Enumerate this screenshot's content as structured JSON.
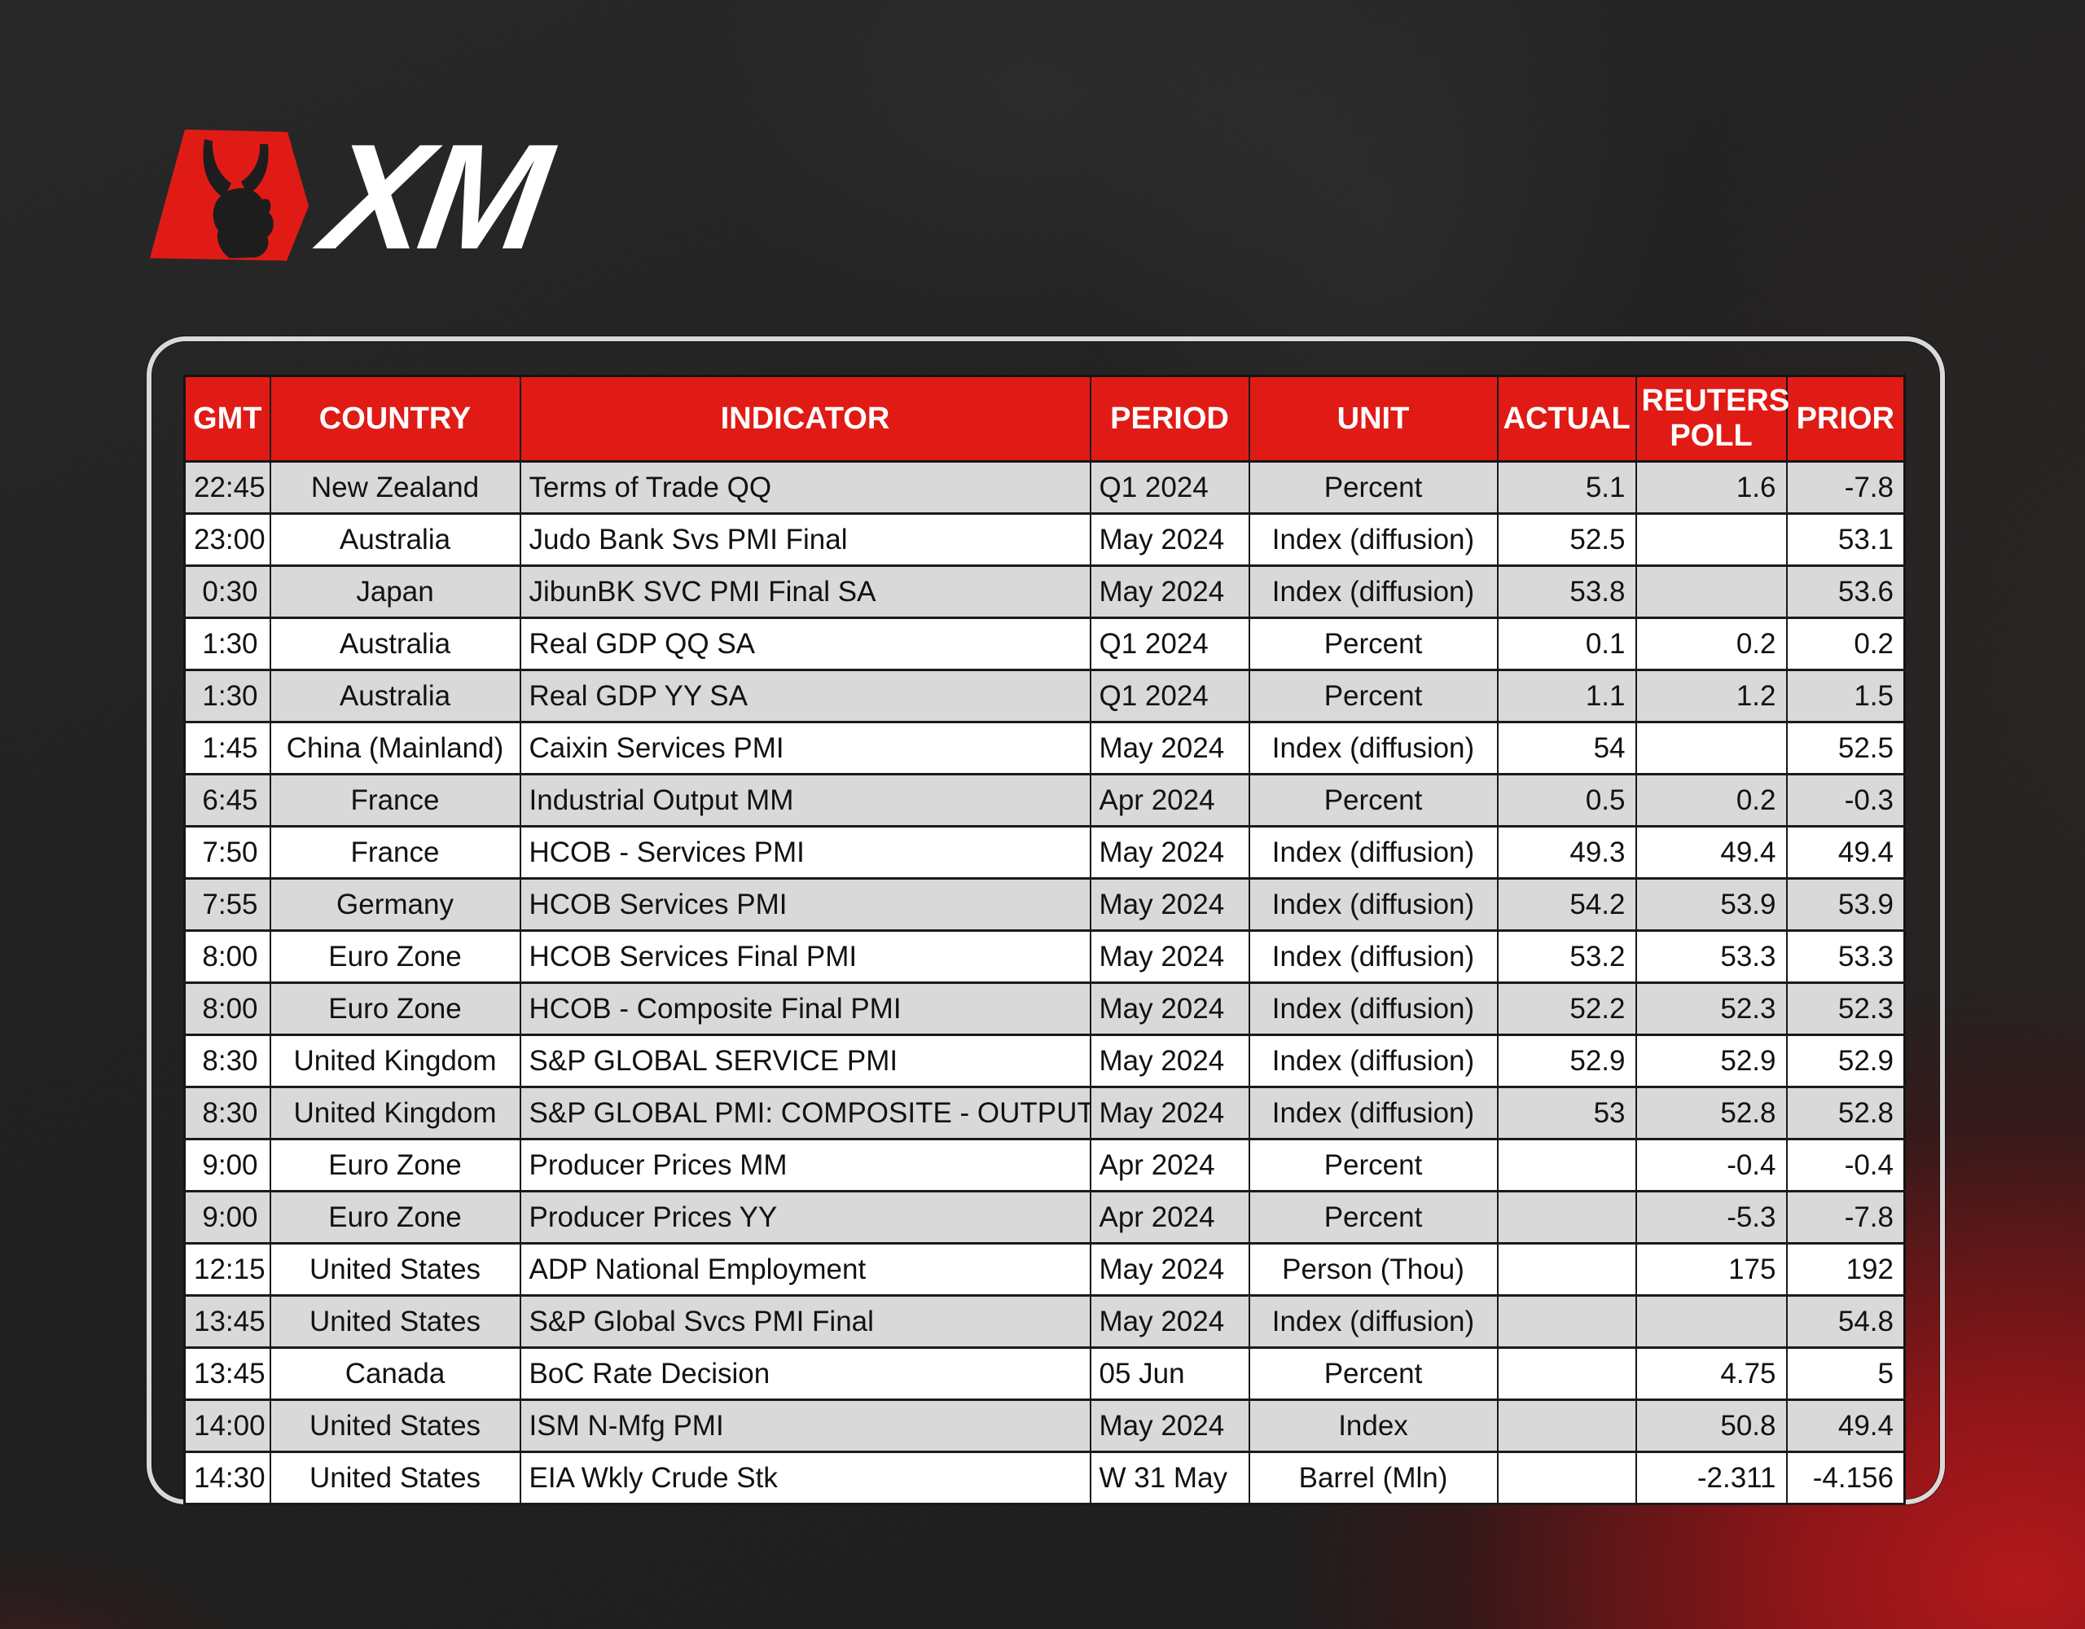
{
  "brand": {
    "logo_text": "XM"
  },
  "colors": {
    "brand_red": "#e01b15",
    "header_bg": "#e01b15",
    "header_text": "#ffffff",
    "row_alt_gray": "#d9d9d9",
    "row_white": "#ffffff",
    "panel_border_silver": "#d9d9d9",
    "background_dark": "#1d1c1c",
    "glow_red": "#b31316"
  },
  "chart_data": {
    "type": "table",
    "title": "",
    "columns": [
      "GMT",
      "COUNTRY",
      "INDICATOR",
      "PERIOD",
      "UNIT",
      "ACTUAL",
      "REUTERS POLL",
      "PRIOR"
    ],
    "rows": [
      [
        "22:45",
        "New Zealand",
        "Terms of Trade QQ",
        "Q1 2024",
        "Percent",
        "5.1",
        "1.6",
        "-7.8"
      ],
      [
        "23:00",
        "Australia",
        "Judo Bank Svs PMI Final",
        "May 2024",
        "Index (diffusion)",
        "52.5",
        "",
        "53.1"
      ],
      [
        "0:30",
        "Japan",
        "JibunBK SVC PMI Final SA",
        "May 2024",
        "Index (diffusion)",
        "53.8",
        "",
        "53.6"
      ],
      [
        "1:30",
        "Australia",
        "Real GDP QQ SA",
        "Q1 2024",
        "Percent",
        "0.1",
        "0.2",
        "0.2"
      ],
      [
        "1:30",
        "Australia",
        "Real GDP YY SA",
        "Q1 2024",
        "Percent",
        "1.1",
        "1.2",
        "1.5"
      ],
      [
        "1:45",
        "China (Mainland)",
        "Caixin Services PMI",
        "May 2024",
        "Index (diffusion)",
        "54",
        "",
        "52.5"
      ],
      [
        "6:45",
        "France",
        "Industrial Output MM",
        "Apr 2024",
        "Percent",
        "0.5",
        "0.2",
        "-0.3"
      ],
      [
        "7:50",
        "France",
        "HCOB - Services PMI",
        "May 2024",
        "Index (diffusion)",
        "49.3",
        "49.4",
        "49.4"
      ],
      [
        "7:55",
        "Germany",
        "HCOB Services PMI",
        "May 2024",
        "Index (diffusion)",
        "54.2",
        "53.9",
        "53.9"
      ],
      [
        "8:00",
        "Euro Zone",
        "HCOB Services Final PMI",
        "May 2024",
        "Index (diffusion)",
        "53.2",
        "53.3",
        "53.3"
      ],
      [
        "8:00",
        "Euro Zone",
        "HCOB - Composite Final PMI",
        "May 2024",
        "Index (diffusion)",
        "52.2",
        "52.3",
        "52.3"
      ],
      [
        "8:30",
        "United Kingdom",
        "S&P GLOBAL SERVICE PMI",
        "May 2024",
        "Index (diffusion)",
        "52.9",
        "52.9",
        "52.9"
      ],
      [
        "8:30",
        "United Kingdom",
        "S&P GLOBAL PMI: COMPOSITE - OUTPUT",
        "May 2024",
        "Index (diffusion)",
        "53",
        "52.8",
        "52.8"
      ],
      [
        "9:00",
        "Euro Zone",
        "Producer Prices MM",
        "Apr 2024",
        "Percent",
        "",
        "-0.4",
        "-0.4"
      ],
      [
        "9:00",
        "Euro Zone",
        "Producer Prices YY",
        "Apr 2024",
        "Percent",
        "",
        "-5.3",
        "-7.8"
      ],
      [
        "12:15",
        "United States",
        "ADP National Employment",
        "May 2024",
        "Person (Thou)",
        "",
        "175",
        "192"
      ],
      [
        "13:45",
        "United States",
        "S&P Global Svcs PMI Final",
        "May 2024",
        "Index (diffusion)",
        "",
        "",
        "54.8"
      ],
      [
        "13:45",
        "Canada",
        "BoC Rate Decision",
        "05 Jun",
        "Percent",
        "",
        "4.75",
        "5"
      ],
      [
        "14:00",
        "United States",
        "ISM N-Mfg PMI",
        "May 2024",
        "Index",
        "",
        "50.8",
        "49.4"
      ],
      [
        "14:30",
        "United States",
        "EIA Wkly Crude Stk",
        "W 31 May",
        "Barrel (Mln)",
        "",
        "-2.311",
        "-4.156"
      ]
    ]
  }
}
